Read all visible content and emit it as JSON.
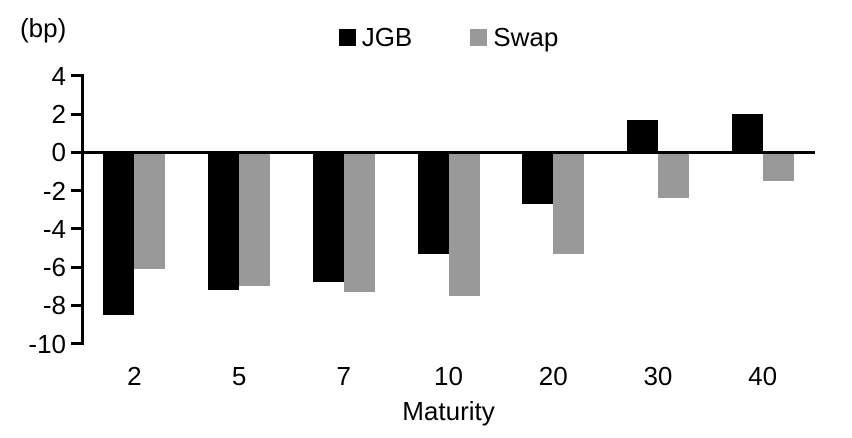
{
  "chart_data": {
    "type": "bar",
    "title": "",
    "unit_label": "(bp)",
    "xlabel": "Maturity",
    "categories": [
      "2",
      "5",
      "7",
      "10",
      "20",
      "30",
      "40"
    ],
    "series": [
      {
        "name": "JGB",
        "color": "#000000",
        "values": [
          -8.5,
          -7.2,
          -6.8,
          -5.3,
          -2.7,
          1.7,
          2.0
        ]
      },
      {
        "name": "Swap",
        "color": "#999999",
        "values": [
          -6.1,
          -7.0,
          -7.3,
          -7.5,
          -5.3,
          -2.4,
          -1.5
        ]
      }
    ],
    "y_ticks": [
      4,
      2,
      0,
      -2,
      -4,
      -6,
      -8,
      -10
    ],
    "ylim": [
      -10,
      4
    ],
    "legend_position": "top",
    "grid": false,
    "axis_color": "#000000",
    "background_color": "#ffffff"
  }
}
